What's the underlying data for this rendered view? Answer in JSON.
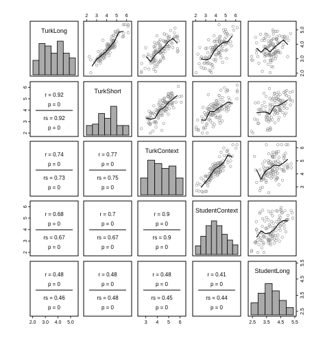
{
  "chart_data": {
    "type": "scatter",
    "variables": [
      "TurkLong",
      "TurkShort",
      "TurkContext",
      "StudentContext",
      "StudentLong"
    ],
    "panel_matrix": [
      [
        "hist",
        "scatter",
        "scatter",
        "scatter",
        "scatter"
      ],
      [
        "cor",
        "hist",
        "scatter",
        "scatter",
        "scatter"
      ],
      [
        "cor",
        "cor",
        "hist",
        "scatter",
        "scatter"
      ],
      [
        "cor",
        "cor",
        "cor",
        "hist",
        "scatter"
      ],
      [
        "cor",
        "cor",
        "cor",
        "cor",
        "hist"
      ]
    ],
    "axis_ticks": {
      "TurkLong": [
        "2.0",
        "3.0",
        "4.0",
        "5.0"
      ],
      "TurkShort": [
        "2",
        "3",
        "4",
        "5",
        "6"
      ],
      "TurkContext": [
        "3",
        "4",
        "5",
        "6"
      ],
      "StudentContext": [
        "2",
        "3",
        "4",
        "5",
        "6"
      ],
      "StudentLong": [
        "2.5",
        "3.5",
        "4.5",
        "5.5"
      ]
    },
    "ranges": {
      "TurkLong": [
        1.8,
        5.6
      ],
      "TurkShort": [
        1.7,
        6.5
      ],
      "TurkContext": [
        2.3,
        6.5
      ],
      "StudentContext": [
        1.7,
        6.5
      ],
      "StudentLong": [
        2.2,
        5.6
      ]
    },
    "histograms": {
      "TurkLong": [
        0.3,
        0.65,
        0.6,
        0.45,
        0.7,
        0.45,
        0.35
      ],
      "TurkShort": [
        0.2,
        0.23,
        0.45,
        0.35,
        0.6,
        0.2,
        0.2
      ],
      "TurkContext": [
        0.35,
        0.72,
        0.65,
        0.55,
        0.6,
        0.35
      ],
      "StudentContext": [
        0.18,
        0.38,
        0.6,
        0.7,
        0.6,
        0.42,
        0.3,
        0.2
      ],
      "StudentLong": [
        0.25,
        0.45,
        0.65,
        0.5,
        0.3,
        0.15
      ]
    },
    "correlations": [
      {
        "row": 1,
        "col": 0,
        "r": "r = 0.92",
        "p": "p = 0",
        "rs": "rs = 0.92",
        "ps": "p = 0"
      },
      {
        "row": 2,
        "col": 0,
        "r": "r = 0.74",
        "p": "p = 0",
        "rs": "rs = 0.73",
        "ps": "p = 0"
      },
      {
        "row": 2,
        "col": 1,
        "r": "r = 0.77",
        "p": "p = 0",
        "rs": "rs = 0.75",
        "ps": "p = 0"
      },
      {
        "row": 3,
        "col": 0,
        "r": "r = 0.68",
        "p": "p = 0",
        "rs": "rs = 0.67",
        "ps": "p = 0"
      },
      {
        "row": 3,
        "col": 1,
        "r": "r = 0.7",
        "p": "p = 0",
        "rs": "rs = 0.67",
        "ps": "p = 0"
      },
      {
        "row": 3,
        "col": 2,
        "r": "r = 0.9",
        "p": "p = 0",
        "rs": "rs = 0.9",
        "ps": "p = 0"
      },
      {
        "row": 4,
        "col": 0,
        "r": "r = 0.48",
        "p": "p = 0",
        "rs": "rs = 0.46",
        "ps": "p = 0"
      },
      {
        "row": 4,
        "col": 1,
        "r": "r = 0.48",
        "p": "p = 0",
        "rs": "rs = 0.48",
        "ps": "p = 0"
      },
      {
        "row": 4,
        "col": 2,
        "r": "r = 0.48",
        "p": "p = 0",
        "rs": "rs = 0.45",
        "ps": "p = 0"
      },
      {
        "row": 4,
        "col": 3,
        "r": "r = 0.41",
        "p": "p = 0",
        "rs": "rs = 0.44",
        "ps": "p = 0"
      }
    ],
    "scatter_correlation": {
      "0-1": 0.92,
      "0-2": 0.74,
      "0-3": 0.68,
      "0-4": 0.48,
      "1-2": 0.77,
      "1-3": 0.7,
      "1-4": 0.48,
      "2-3": 0.9,
      "2-4": 0.48,
      "3-4": 0.41
    },
    "points_per_panel": 110,
    "colors": {
      "hist_fill": "#aaaaaa",
      "point": "#888888",
      "frame": "#000000"
    }
  }
}
